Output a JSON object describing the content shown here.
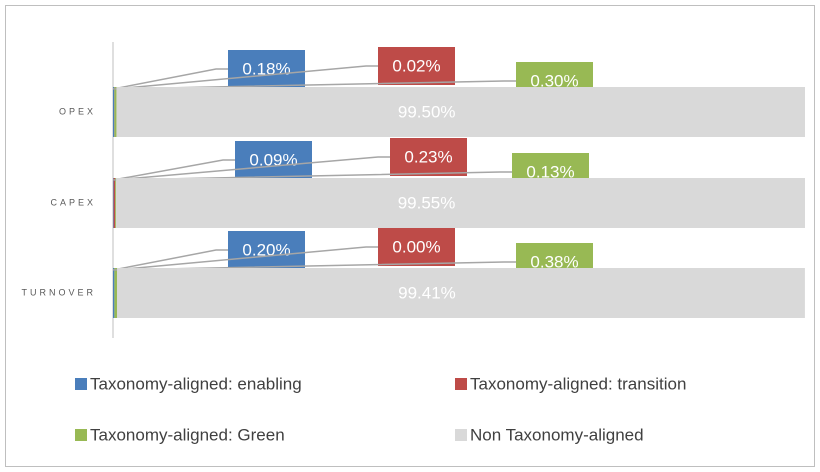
{
  "chart_data": {
    "type": "stacked-bar-horizontal",
    "categories": [
      "OPEX",
      "CAPEX",
      "TURNOVER"
    ],
    "xlim": [
      0,
      100
    ],
    "legend": "bottom",
    "series": [
      {
        "name": "Taxonomy-aligned: enabling",
        "color": "#4a7ebb",
        "values": [
          0.18,
          0.09,
          0.2
        ],
        "value_labels": [
          "0.18%",
          "0.09%",
          "0.20%"
        ]
      },
      {
        "name": "Taxonomy-aligned: transition",
        "color": "#be4b48",
        "values": [
          0.02,
          0.23,
          0.0
        ],
        "value_labels": [
          "0.02%",
          "0.23%",
          "0.00%"
        ]
      },
      {
        "name": "Taxonomy-aligned: Green",
        "color": "#98b954",
        "values": [
          0.3,
          0.13,
          0.38
        ],
        "value_labels": [
          "0.30%",
          "0.13%",
          "0.38%"
        ]
      },
      {
        "name": "Non Taxonomy-aligned",
        "color": "#d9d9d9",
        "values": [
          99.5,
          99.55,
          99.41
        ],
        "value_labels": [
          "99.50%",
          "99.55%",
          "99.41%"
        ]
      }
    ]
  }
}
